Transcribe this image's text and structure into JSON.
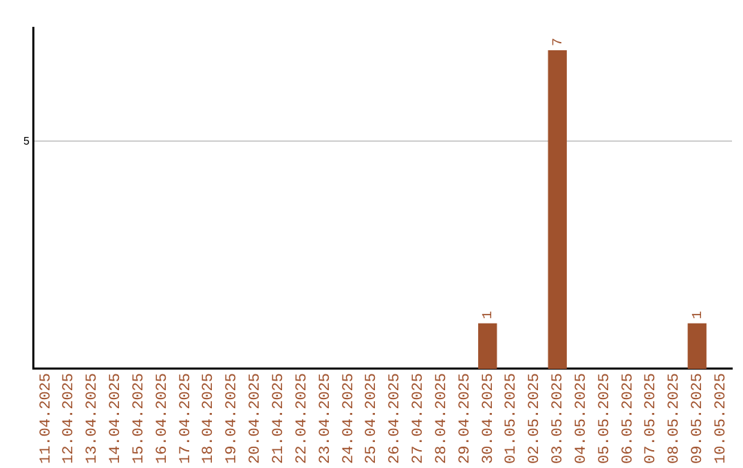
{
  "chart_data": {
    "type": "bar",
    "categories": [
      "11.04.2025",
      "12.04.2025",
      "13.04.2025",
      "14.04.2025",
      "15.04.2025",
      "16.04.2025",
      "17.04.2025",
      "18.04.2025",
      "19.04.2025",
      "20.04.2025",
      "21.04.2025",
      "22.04.2025",
      "23.04.2025",
      "24.04.2025",
      "25.04.2025",
      "26.04.2025",
      "27.04.2025",
      "28.04.2025",
      "29.04.2025",
      "30.04.2025",
      "01.05.2025",
      "02.05.2025",
      "03.05.2025",
      "04.05.2025",
      "05.05.2025",
      "06.05.2025",
      "07.05.2025",
      "08.05.2025",
      "09.05.2025",
      "10.05.2025"
    ],
    "values": [
      null,
      null,
      null,
      null,
      null,
      null,
      null,
      null,
      null,
      null,
      null,
      null,
      null,
      null,
      null,
      null,
      null,
      null,
      null,
      1,
      null,
      null,
      7,
      null,
      null,
      null,
      null,
      null,
      1,
      null
    ],
    "data_labels": true,
    "color": "#a0522d",
    "ylim": [
      0,
      7.5
    ],
    "yticks": [
      5
    ],
    "grid": "y",
    "legend": false
  }
}
